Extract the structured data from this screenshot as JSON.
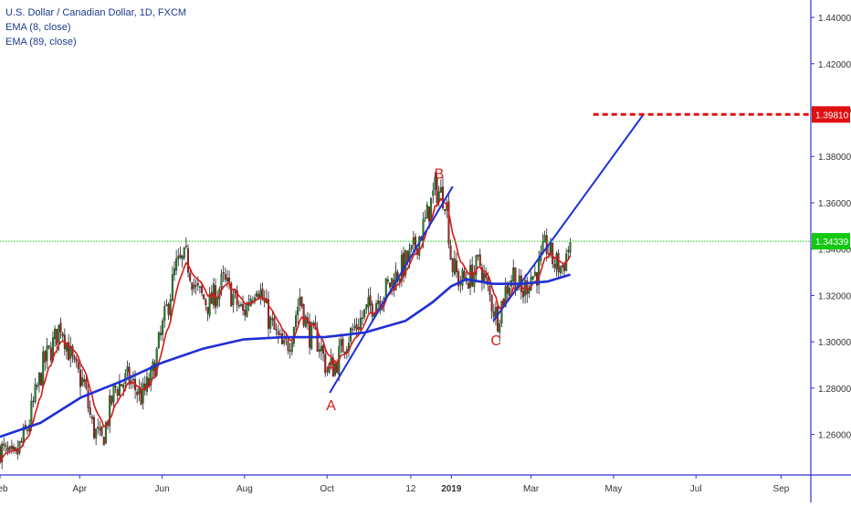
{
  "legend": {
    "symbol": "U.S. Dollar / Canadian Dollar, 1D, FXCM",
    "ema_fast": "EMA (8, close)",
    "ema_slow": "EMA (89, close)"
  },
  "chart_data": {
    "type": "candlestick",
    "title": "U.S. Dollar / Canadian Dollar, 1D, FXCM",
    "x_ticks": [
      "Feb",
      "Apr",
      "Jun",
      "Aug",
      "Oct",
      "12",
      "2019",
      "Mar",
      "May",
      "Jul",
      "Sep"
    ],
    "x_tick_days": [
      0,
      59,
      120,
      181,
      242,
      304,
      334,
      393,
      454,
      515,
      578
    ],
    "x_range_days": [
      0,
      600
    ],
    "y_ticks": [
      1.26,
      1.28,
      1.3,
      1.32,
      1.34,
      1.36,
      1.38,
      1.4,
      1.42,
      1.44
    ],
    "y_tick_labels": [
      "1.26000",
      "1.28000",
      "1.30000",
      "1.32000",
      "1.34000",
      "1.36000",
      "1.38000",
      "1.40000",
      "1.42000",
      "1.44000"
    ],
    "ylim": [
      1.2425,
      1.4475
    ],
    "price_points": [
      [
        0,
        1.254
      ],
      [
        10,
        1.248
      ],
      [
        20,
        1.262
      ],
      [
        32,
        1.29
      ],
      [
        40,
        1.3
      ],
      [
        45,
        1.308
      ],
      [
        55,
        1.288
      ],
      [
        62,
        1.282
      ],
      [
        68,
        1.264
      ],
      [
        75,
        1.256
      ],
      [
        85,
        1.28
      ],
      [
        95,
        1.284
      ],
      [
        105,
        1.276
      ],
      [
        112,
        1.284
      ],
      [
        118,
        1.3
      ],
      [
        125,
        1.318
      ],
      [
        130,
        1.332
      ],
      [
        138,
        1.336
      ],
      [
        145,
        1.322
      ],
      [
        155,
        1.316
      ],
      [
        165,
        1.326
      ],
      [
        172,
        1.32
      ],
      [
        180,
        1.312
      ],
      [
        190,
        1.326
      ],
      [
        200,
        1.308
      ],
      [
        210,
        1.296
      ],
      [
        215,
        1.302
      ],
      [
        222,
        1.32
      ],
      [
        228,
        1.304
      ],
      [
        236,
        1.3
      ],
      [
        242,
        1.288
      ],
      [
        248,
        1.29
      ],
      [
        255,
        1.3
      ],
      [
        265,
        1.308
      ],
      [
        275,
        1.316
      ],
      [
        285,
        1.322
      ],
      [
        295,
        1.33
      ],
      [
        305,
        1.338
      ],
      [
        315,
        1.352
      ],
      [
        322,
        1.366
      ],
      [
        330,
        1.362
      ],
      [
        334,
        1.334
      ],
      [
        340,
        1.326
      ],
      [
        348,
        1.328
      ],
      [
        355,
        1.334
      ],
      [
        362,
        1.32
      ],
      [
        368,
        1.31
      ],
      [
        374,
        1.322
      ],
      [
        380,
        1.33
      ],
      [
        386,
        1.32
      ],
      [
        392,
        1.328
      ],
      [
        398,
        1.33
      ],
      [
        404,
        1.342
      ],
      [
        410,
        1.334
      ],
      [
        416,
        1.332
      ],
      [
        422,
        1.343
      ]
    ],
    "series": [
      {
        "name": "EMA (8, close)",
        "color": "#d71a1a"
      },
      {
        "name": "EMA (89, close)",
        "color": "#1f2fd6"
      }
    ],
    "ema_slow_points": [
      [
        0,
        1.259
      ],
      [
        30,
        1.265
      ],
      [
        60,
        1.276
      ],
      [
        90,
        1.283
      ],
      [
        120,
        1.291
      ],
      [
        150,
        1.297
      ],
      [
        180,
        1.301
      ],
      [
        210,
        1.302
      ],
      [
        240,
        1.302
      ],
      [
        270,
        1.304
      ],
      [
        300,
        1.309
      ],
      [
        320,
        1.317
      ],
      [
        334,
        1.324
      ],
      [
        345,
        1.327
      ],
      [
        365,
        1.325
      ],
      [
        385,
        1.325
      ],
      [
        405,
        1.326
      ],
      [
        422,
        1.329
      ]
    ],
    "annotations": [
      {
        "text": "A",
        "day": 245,
        "price": 1.2875,
        "color": "#d71a1a"
      },
      {
        "text": "A",
        "day": 245,
        "price": 1.2705,
        "color": "#d71a1a"
      },
      {
        "text": "B",
        "day": 325,
        "price": 1.3705,
        "color": "#d71a1a"
      },
      {
        "text": "C",
        "day": 367,
        "price": 1.2985,
        "color": "#d71a1a"
      }
    ],
    "trend_lines": [
      {
        "from": [
          244,
          1.278
        ],
        "to": [
          335,
          1.367
        ],
        "color": "#1f2fd6"
      },
      {
        "from": [
          365,
          1.309
        ],
        "to": [
          476,
          1.398
        ],
        "color": "#1f2fd6"
      }
    ],
    "target_level": {
      "price": 1.3981,
      "label": "1.39810",
      "from_day": 439,
      "color": "#e01010"
    },
    "current_price": {
      "price": 1.34339,
      "label": "1.34339",
      "color": "#13c913"
    },
    "colors": {
      "up": "#1d8a1d",
      "down": "#c41a1a",
      "wick": "#222222",
      "axis": "#3333cc",
      "axis_text": "#333333"
    }
  }
}
